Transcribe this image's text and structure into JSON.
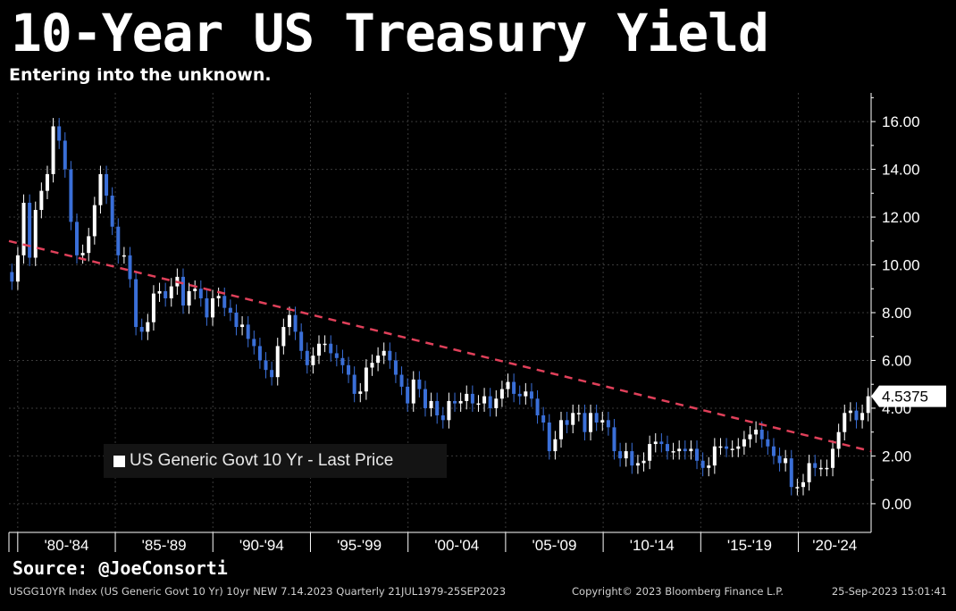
{
  "header": {
    "title": "10-Year US Treasury Yield",
    "subtitle": "Entering into the unknown."
  },
  "source": "Source: @JoeConsorti",
  "footer": {
    "left": "USGG10YR Index (US Generic Govt 10 Yr) 10yr NEW 7.14.2023  Quarterly 21JUL1979-25SEP2023",
    "middle": "Copyright© 2023 Bloomberg Finance L.P.",
    "right": "25-Sep-2023 15:01:41"
  },
  "legend": {
    "label": "US Generic Govt 10 Yr - Last Price"
  },
  "colors": {
    "background": "#000000",
    "up_candle": "#ffffff",
    "down_candle": "#3a6fd8",
    "trendline": "#e0405a",
    "grid": "#3a3a3a",
    "axis": "#ffffff"
  },
  "chart_data": {
    "type": "candlestick",
    "title": "10-Year US Treasury Yield",
    "series_name": "US Generic Govt 10 Yr - Last Price",
    "last_price": "4.5375",
    "ylim": [
      -1.2,
      17.2
    ],
    "y_ticks": [
      "16.00",
      "14.00",
      "12.00",
      "10.00",
      "8.00",
      "6.00",
      "4.00",
      "2.00",
      "0.00"
    ],
    "y_tick_values": [
      16,
      14,
      12,
      10,
      8,
      6,
      4,
      2,
      0
    ],
    "x_start_year": 1979.55,
    "x_end_year": 2023.73,
    "x_ticks": [
      "'80-'84",
      "'85-'89",
      "'90-'94",
      "'95-'99",
      "'00-'04",
      "'05-'09",
      "'10-'14",
      "'15-'19",
      "'20-'24"
    ],
    "x_tick_years": [
      1980,
      1985,
      1990,
      1995,
      2000,
      2005,
      2010,
      2015,
      2020
    ],
    "trendline": {
      "start_year": 1979.55,
      "start_value": 11.0,
      "end_year": 2023.73,
      "end_value": 2.2
    },
    "closes": [
      9.3,
      10.4,
      12.6,
      10.3,
      12.3,
      13.1,
      13.8,
      15.8,
      15.2,
      14.0,
      11.8,
      10.4,
      10.5,
      11.2,
      12.5,
      13.8,
      12.9,
      11.6,
      10.4,
      10.4,
      9.4,
      7.4,
      7.2,
      7.6,
      8.8,
      8.9,
      8.6,
      9.1,
      9.5,
      8.3,
      8.9,
      9.0,
      8.6,
      7.8,
      8.6,
      8.7,
      8.2,
      8.0,
      7.4,
      7.5,
      6.9,
      6.6,
      6.0,
      5.6,
      5.3,
      6.6,
      7.4,
      7.9,
      7.2,
      6.4,
      5.8,
      6.2,
      6.7,
      6.7,
      6.3,
      6.1,
      5.8,
      5.4,
      4.6,
      4.7,
      5.7,
      5.9,
      6.2,
      6.4,
      6.0,
      5.4,
      4.9,
      4.2,
      5.2,
      4.8,
      4.0,
      4.3,
      3.7,
      3.5,
      4.3,
      4.2,
      4.3,
      4.6,
      4.2,
      4.2,
      4.5,
      4.0,
      4.4,
      4.8,
      5.1,
      4.6,
      4.5,
      4.7,
      4.4,
      3.7,
      3.4,
      2.2,
      2.7,
      3.5,
      3.3,
      3.8,
      3.8,
      3.0,
      3.8,
      3.4,
      3.5,
      3.2,
      2.2,
      1.9,
      2.2,
      1.6,
      1.7,
      1.8,
      2.5,
      2.6,
      2.5,
      2.2,
      2.2,
      2.3,
      2.2,
      2.3,
      1.8,
      1.5,
      1.6,
      2.4,
      2.4,
      2.3,
      2.3,
      2.4,
      2.7,
      2.9,
      3.1,
      2.7,
      2.4,
      2.0,
      1.7,
      1.9,
      0.7,
      0.7,
      0.9,
      1.7,
      1.5,
      1.5,
      1.5,
      2.3,
      3.0,
      3.8,
      3.9,
      3.5,
      3.8,
      4.5
    ]
  }
}
